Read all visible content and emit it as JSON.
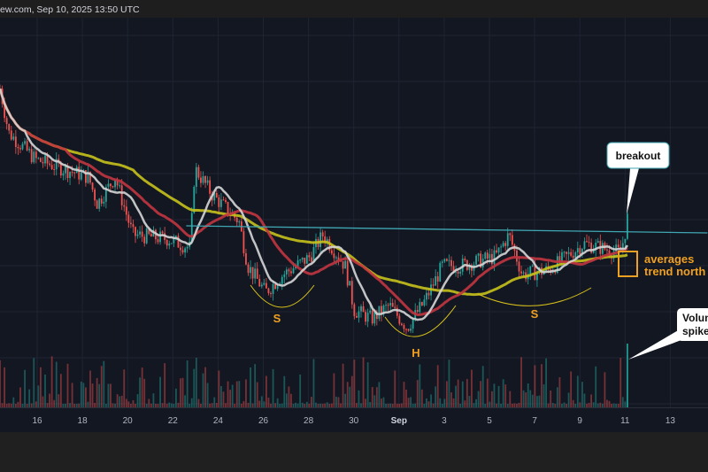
{
  "header": {
    "title": "ew.com, Sep 10, 2025 13:50 UTC"
  },
  "colors": {
    "bg": "#131722",
    "grid": "#1f2433",
    "up": "#26a69a",
    "down": "#ef5350",
    "ma_fast": "#d6d6d6",
    "ma_mid": "#c2353f",
    "ma_slow": "#c8c21c",
    "neckline": "#3fa7b3",
    "annotation": "#f0a020"
  },
  "chart_data": {
    "type": "candlestick",
    "title": "",
    "x_unit": "day (Aug 14 to Sep 13, Aug days continue past 31)",
    "x_ticks": [
      "16",
      "18",
      "20",
      "22",
      "24",
      "26",
      "28",
      "30",
      "Sep",
      "3",
      "5",
      "7",
      "9",
      "11",
      "13"
    ],
    "xlim": [
      14.35,
      45.7
    ],
    "price_index_path": [
      [
        14.35,
        360
      ],
      [
        14.74,
        310
      ],
      [
        15.92,
        280
      ],
      [
        18.27,
        260
      ],
      [
        18.66,
        230
      ],
      [
        19.45,
        260
      ],
      [
        20.23,
        195
      ],
      [
        21.8,
        190
      ],
      [
        22.78,
        180
      ],
      [
        22.98,
        270
      ],
      [
        23.76,
        240
      ],
      [
        24.94,
        210
      ],
      [
        25.33,
        160
      ],
      [
        26.11,
        130
      ],
      [
        26.9,
        150
      ],
      [
        28.08,
        170
      ],
      [
        28.66,
        195
      ],
      [
        29.64,
        160
      ],
      [
        30.04,
        110
      ],
      [
        30.82,
        100
      ],
      [
        31.6,
        115
      ],
      [
        32.39,
        90
      ],
      [
        33.17,
        120
      ],
      [
        33.96,
        160
      ],
      [
        34.74,
        160
      ],
      [
        36.31,
        170
      ],
      [
        36.9,
        195
      ],
      [
        37.49,
        150
      ],
      [
        38.66,
        155
      ],
      [
        40.23,
        185
      ],
      [
        41.02,
        180
      ],
      [
        41.8,
        175
      ],
      [
        42.0,
        190
      ],
      [
        42.19,
        220
      ]
    ],
    "moving_averages": [
      {
        "name": "fast MA",
        "period": 12
      },
      {
        "name": "mid MA",
        "period": 30
      },
      {
        "name": "slow MA",
        "period": 60
      }
    ],
    "neckline": {
      "from": [
        22.6,
        205
      ],
      "to": [
        45.7,
        197
      ]
    },
    "volume_spike_day": 42.19,
    "pattern_labels": [
      "S",
      "H",
      "S"
    ],
    "annotations": {
      "breakout": "breakout",
      "averages_line1": "averages",
      "averages_line2": "trend north",
      "volume_line1": "Volume",
      "volume_line2": "spike"
    }
  }
}
